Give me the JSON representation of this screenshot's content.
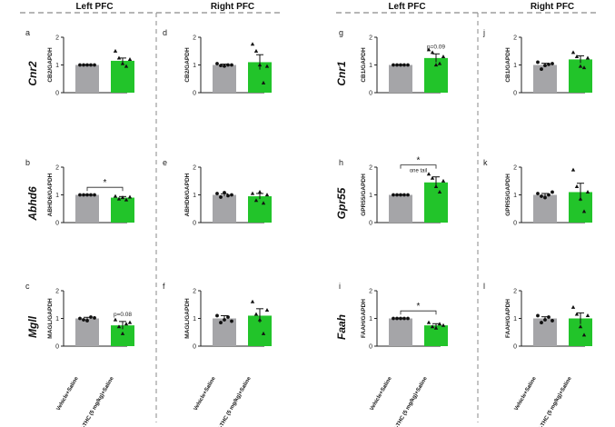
{
  "headers": [
    "Left PFC",
    "Right PFC",
    "Left PFC",
    "Right PFC"
  ],
  "gene_labels": {
    "row0": [
      "Cnr2",
      "Cnr1"
    ],
    "row1": [
      "Abhd6",
      "Gpr55"
    ],
    "row2": [
      "Mgll",
      "Faah"
    ]
  },
  "x_labels": [
    "Vehicle+Saline",
    "Δ9-THC (5 mg/kg)+Saline"
  ],
  "colors": {
    "vehicle": "#a5a5a8",
    "thc": "#22c42a",
    "axis": "#222222",
    "divider": "#8a8a8a"
  },
  "chart_data": [
    {
      "panel": "a",
      "type": "bar",
      "ylabel": "CB2/GAPDH",
      "ylim": [
        0,
        2
      ],
      "yticks": [
        "0",
        "1",
        "2"
      ],
      "categories": [
        "Vehicle+Saline",
        "Δ9-THC (5 mg/kg)+Saline"
      ],
      "values": [
        1.0,
        1.15
      ],
      "errors": [
        0.01,
        0.1
      ],
      "points": [
        [
          1,
          1,
          1,
          1,
          1
        ],
        [
          1.5,
          1.25,
          1.05,
          0.95,
          1.2
        ]
      ],
      "annotation": ""
    },
    {
      "panel": "b",
      "type": "bar",
      "ylabel": "ABHD6/GAPDH",
      "ylim": [
        0,
        2
      ],
      "yticks": [
        "0",
        "1",
        "2"
      ],
      "categories": [
        "Vehicle+Saline",
        "Δ9-THC (5 mg/kg)+Saline"
      ],
      "values": [
        1.0,
        0.9
      ],
      "errors": [
        0.01,
        0.04
      ],
      "points": [
        [
          1,
          1,
          1,
          1,
          1
        ],
        [
          0.95,
          0.85,
          0.9,
          0.82,
          0.92
        ]
      ],
      "annotation": "",
      "significance": {
        "label": "*",
        "sub": ""
      }
    },
    {
      "panel": "c",
      "type": "bar",
      "ylabel": "MAGL/GAPDH",
      "ylim": [
        0,
        2
      ],
      "yticks": [
        "0",
        "1",
        "2"
      ],
      "categories": [
        "Vehicle+Saline",
        "Δ9-THC (5 mg/kg)+Saline"
      ],
      "values": [
        1.0,
        0.75
      ],
      "errors": [
        0.04,
        0.14
      ],
      "points": [
        [
          1.0,
          0.95,
          0.92,
          1.05,
          1.02
        ],
        [
          0.95,
          0.7,
          0.45,
          0.8,
          0.85
        ]
      ],
      "annotation": "p=0.08"
    },
    {
      "panel": "d",
      "type": "bar",
      "ylabel": "CB2/GAPDH",
      "ylim": [
        0,
        2
      ],
      "yticks": [
        "0",
        "1",
        "2"
      ],
      "categories": [
        "Vehicle+Saline",
        "Δ9-THC (5 mg/kg)+Saline"
      ],
      "values": [
        1.0,
        1.1
      ],
      "errors": [
        0.03,
        0.27
      ],
      "points": [
        [
          1.05,
          0.98,
          0.96,
          1.0,
          1.0
        ],
        [
          1.75,
          1.5,
          1.0,
          0.35,
          0.95
        ]
      ],
      "annotation": ""
    },
    {
      "panel": "e",
      "type": "bar",
      "ylabel": "ABHD6/GAPDH",
      "ylim": [
        0,
        2
      ],
      "yticks": [
        "0",
        "1",
        "2"
      ],
      "categories": [
        "Vehicle+Saline",
        "Δ9-THC (5 mg/kg)+Saline"
      ],
      "values": [
        1.0,
        0.95
      ],
      "errors": [
        0.04,
        0.1
      ],
      "points": [
        [
          1.05,
          0.92,
          1.08,
          0.97,
          1.0
        ],
        [
          1.05,
          0.8,
          1.1,
          0.7,
          1.0
        ]
      ],
      "annotation": ""
    },
    {
      "panel": "f",
      "type": "bar",
      "ylabel": "MAGL/GAPDH",
      "ylim": [
        0,
        2
      ],
      "yticks": [
        "0",
        "1",
        "2"
      ],
      "categories": [
        "Vehicle+Saline",
        "Δ9-THC (5 mg/kg)+Saline"
      ],
      "values": [
        1.0,
        1.1
      ],
      "errors": [
        0.1,
        0.25
      ],
      "points": [
        [
          1.1,
          0.85,
          0.95,
          1.05,
          0.9
        ],
        [
          1.6,
          1.15,
          0.95,
          0.45,
          1.3
        ]
      ],
      "annotation": ""
    },
    {
      "panel": "g",
      "type": "bar",
      "ylabel": "CB1/GAPDH",
      "ylim": [
        0,
        2
      ],
      "yticks": [
        "0",
        "1",
        "2"
      ],
      "categories": [
        "Vehicle+Saline",
        "Δ9-THC (5 mg/kg)+Saline"
      ],
      "values": [
        1.0,
        1.25
      ],
      "errors": [
        0.01,
        0.15
      ],
      "points": [
        [
          1,
          1,
          1,
          1,
          1
        ],
        [
          1.55,
          1.45,
          1.0,
          1.05,
          1.3
        ]
      ],
      "annotation": "p=0.09"
    },
    {
      "panel": "h",
      "type": "bar",
      "ylabel": "GPR55/GAPDH",
      "ylim": [
        0,
        2
      ],
      "yticks": [
        "0",
        "1",
        "2"
      ],
      "categories": [
        "Vehicle+Saline",
        "Δ9-THC (5 mg/kg)+Saline"
      ],
      "values": [
        1.0,
        1.45
      ],
      "errors": [
        0.01,
        0.2
      ],
      "points": [
        [
          1,
          1,
          1,
          1,
          1
        ],
        [
          1.75,
          1.6,
          1.3,
          1.1,
          1.5
        ]
      ],
      "annotation": "",
      "significance": {
        "label": "*",
        "sub": "one tail"
      }
    },
    {
      "panel": "i",
      "type": "bar",
      "ylabel": "FAAH/GAPDH",
      "ylim": [
        0,
        2
      ],
      "yticks": [
        "0",
        "1",
        "2"
      ],
      "categories": [
        "Vehicle+Saline",
        "Δ9-THC (5 mg/kg)+Saline"
      ],
      "values": [
        1.0,
        0.75
      ],
      "errors": [
        0.01,
        0.06
      ],
      "points": [
        [
          1,
          1,
          1,
          1,
          1
        ],
        [
          0.85,
          0.7,
          0.65,
          0.8,
          0.75
        ]
      ],
      "annotation": "",
      "significance": {
        "label": "*",
        "sub": ""
      }
    },
    {
      "panel": "j",
      "type": "bar",
      "ylabel": "CB1/GAPDH",
      "ylim": [
        0,
        2
      ],
      "yticks": [
        "0",
        "1",
        "2"
      ],
      "categories": [
        "Vehicle+Saline",
        "Δ9-THC (5 mg/kg)+Saline"
      ],
      "values": [
        1.0,
        1.2
      ],
      "errors": [
        0.06,
        0.13
      ],
      "points": [
        [
          1.1,
          0.85,
          0.98,
          1.02,
          1.05
        ],
        [
          1.45,
          1.3,
          0.95,
          0.9,
          1.25
        ]
      ],
      "annotation": ""
    },
    {
      "panel": "k",
      "type": "bar",
      "ylabel": "GPR55/GAPDH",
      "ylim": [
        0,
        2
      ],
      "yticks": [
        "0",
        "1",
        "2"
      ],
      "categories": [
        "Vehicle+Saline",
        "Δ9-THC (5 mg/kg)+Saline"
      ],
      "values": [
        1.0,
        1.1
      ],
      "errors": [
        0.05,
        0.32
      ],
      "points": [
        [
          1.05,
          0.95,
          0.9,
          1.0,
          1.1
        ],
        [
          1.9,
          1.3,
          0.85,
          0.4,
          1.1
        ]
      ],
      "annotation": ""
    },
    {
      "panel": "l",
      "type": "bar",
      "ylabel": "FAAH/GAPDH",
      "ylim": [
        0,
        2
      ],
      "yticks": [
        "0",
        "1",
        "2"
      ],
      "categories": [
        "Vehicle+Saline",
        "Δ9-THC (5 mg/kg)+Saline"
      ],
      "values": [
        1.0,
        1.0
      ],
      "errors": [
        0.06,
        0.2
      ],
      "points": [
        [
          1.1,
          0.85,
          0.95,
          1.05,
          0.92
        ],
        [
          1.4,
          1.15,
          0.7,
          0.4,
          1.1
        ]
      ],
      "annotation": ""
    }
  ]
}
